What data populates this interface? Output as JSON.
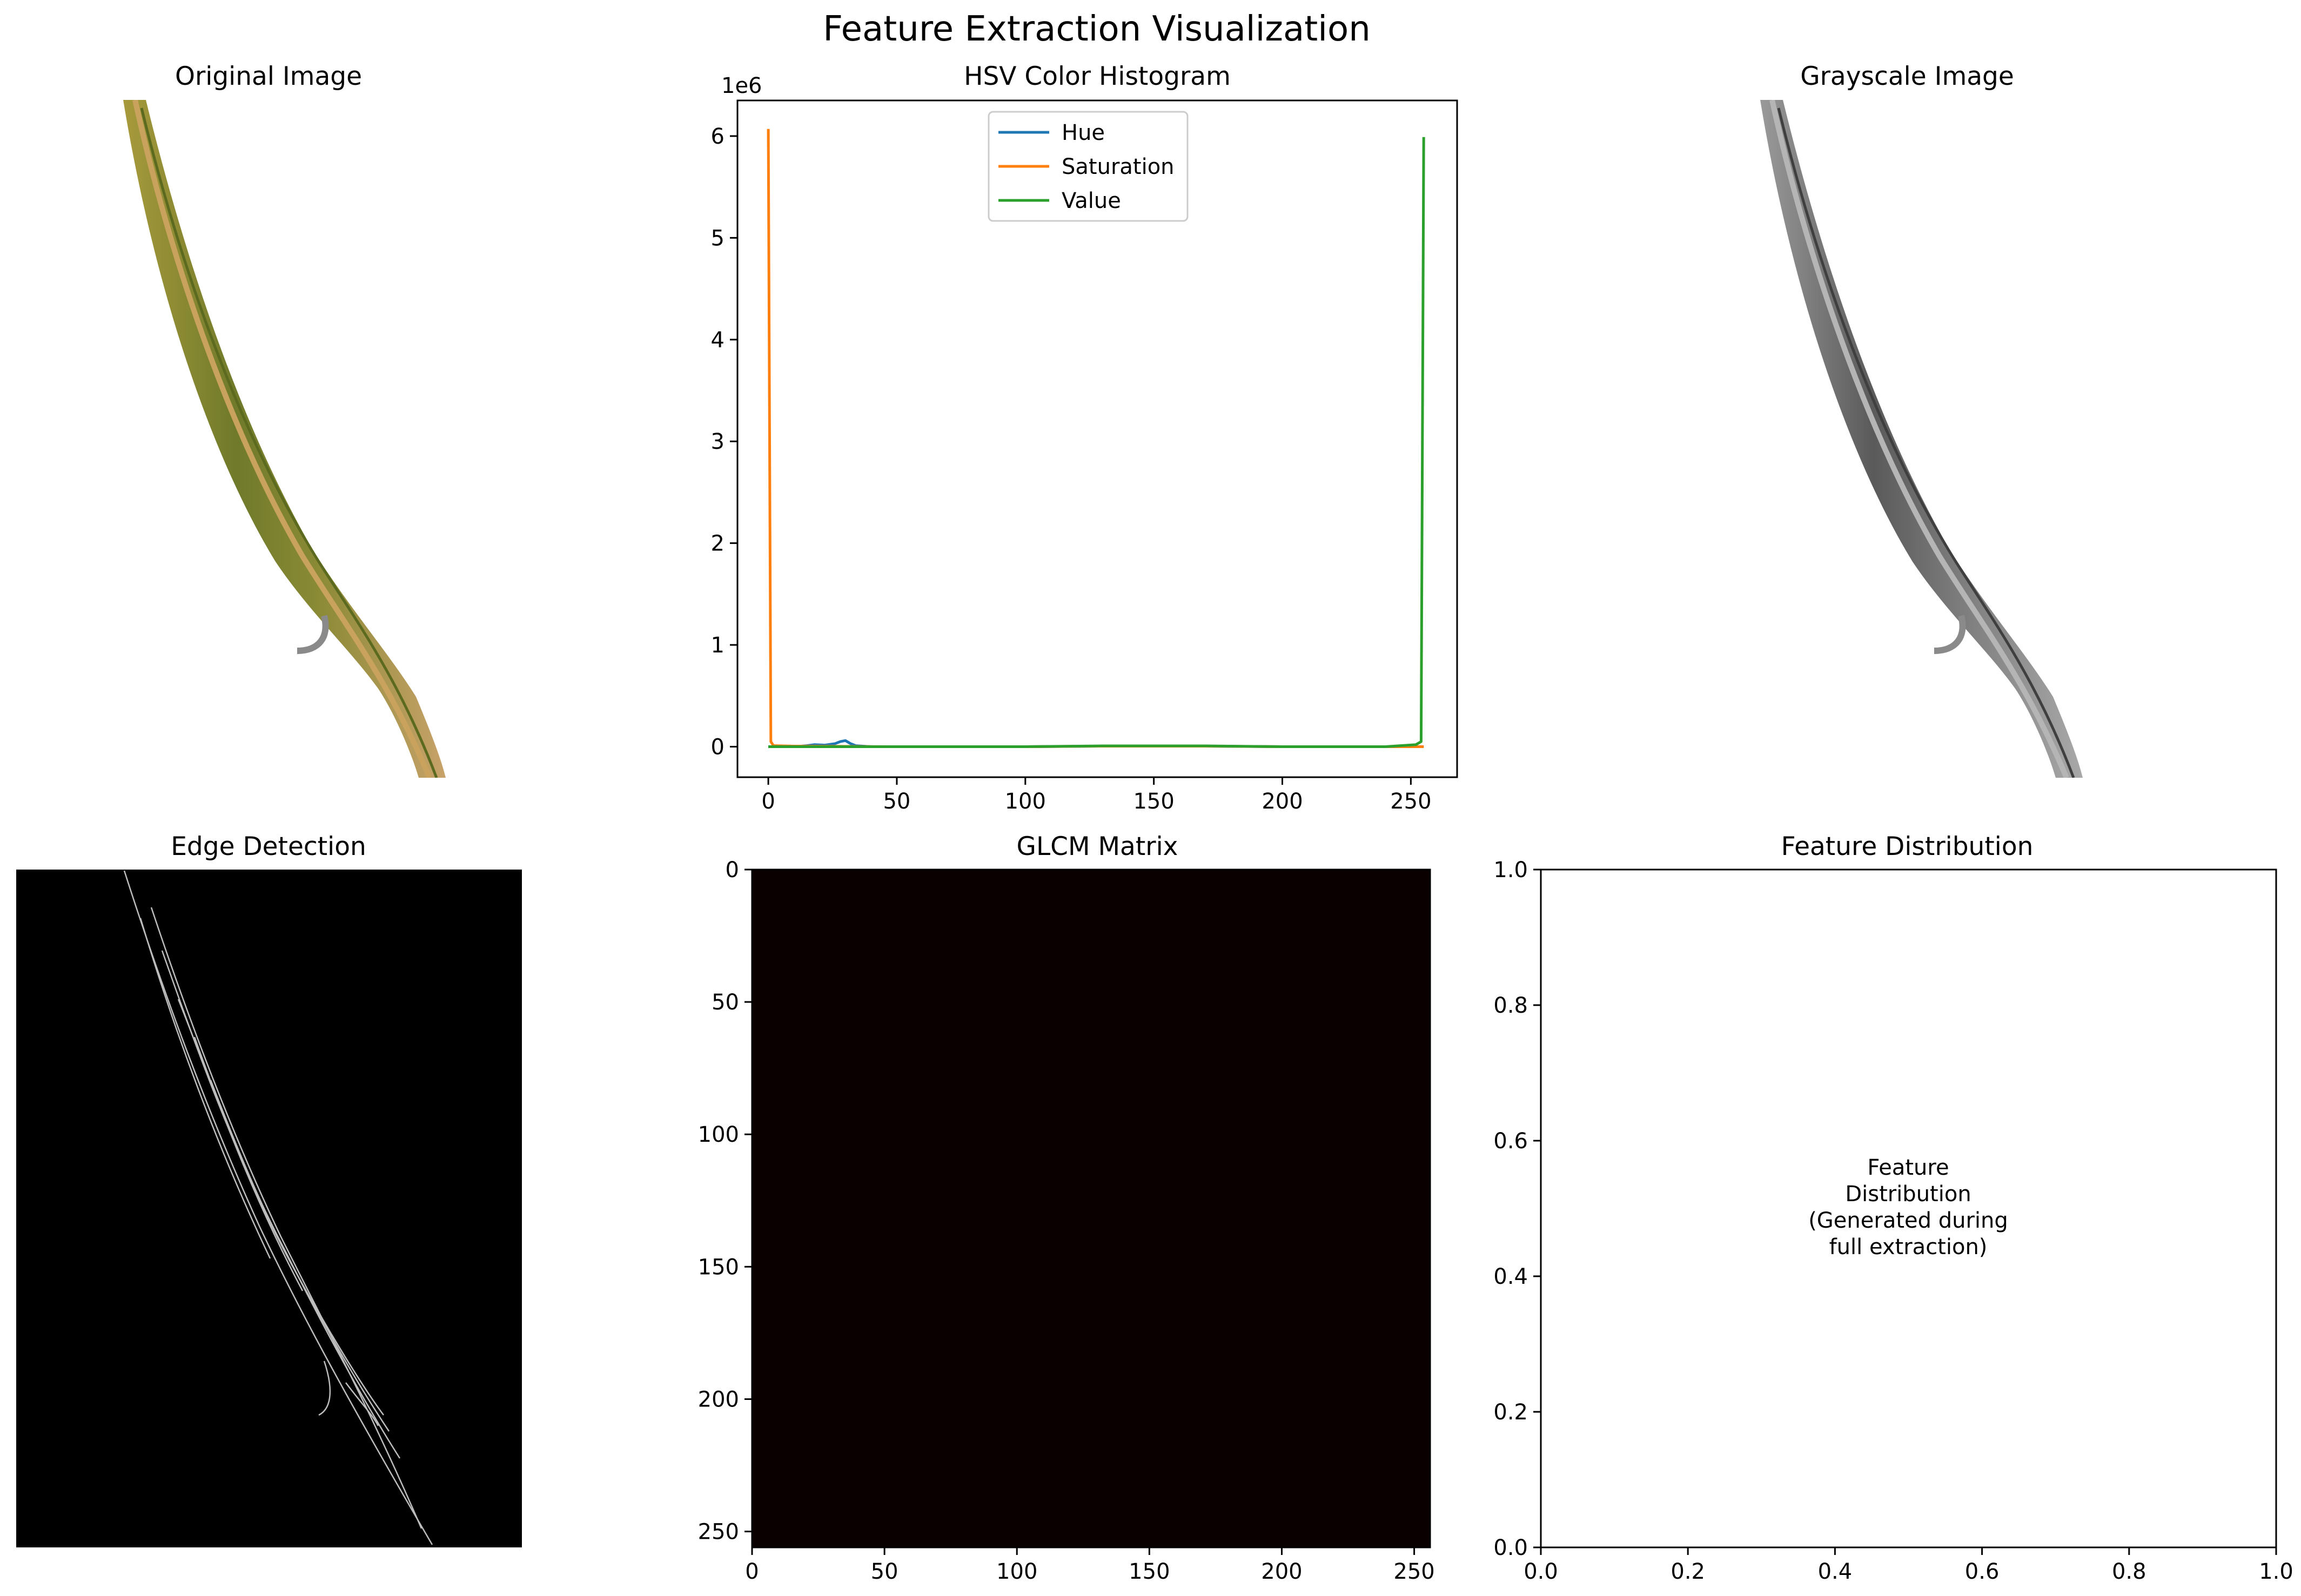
{
  "figure": {
    "title": "Feature Extraction Visualization"
  },
  "panels": {
    "original": {
      "title": "Original Image"
    },
    "grayscale": {
      "title": "Grayscale Image"
    },
    "edges": {
      "title": "Edge Detection"
    },
    "feature_distribution": {
      "title": "Feature Distribution",
      "placeholder_lines": [
        "Feature",
        "Distribution",
        "(Generated during",
        "full extraction)"
      ]
    }
  },
  "chart_data": [
    {
      "type": "line",
      "title": "HSV Color Histogram",
      "xlabel": "",
      "ylabel": "",
      "y_offset_label": "1e6",
      "xlim": [
        -12,
        268
      ],
      "ylim": [
        -0.3,
        6.35
      ],
      "xticks": [
        0,
        50,
        100,
        150,
        200,
        250
      ],
      "yticks": [
        0,
        1,
        2,
        3,
        4,
        5,
        6
      ],
      "legend": "upper-center",
      "series": [
        {
          "name": "Hue",
          "color": "#1f77b4",
          "x": [
            0,
            10,
            15,
            18,
            22,
            26,
            28,
            30,
            32,
            34,
            40,
            60,
            100,
            130,
            170,
            200,
            250,
            255
          ],
          "y": [
            0,
            0,
            0.01,
            0.02,
            0.015,
            0.03,
            0.05,
            0.06,
            0.03,
            0.01,
            0,
            0,
            0,
            0.005,
            0.005,
            0,
            0,
            0
          ]
        },
        {
          "name": "Saturation",
          "color": "#ff7f0e",
          "x": [
            0,
            1,
            2,
            10,
            50,
            100,
            130,
            170,
            200,
            250,
            255
          ],
          "y": [
            6.07,
            0.05,
            0.01,
            0.005,
            0,
            0,
            0.005,
            0.005,
            0,
            0,
            0
          ]
        },
        {
          "name": "Value",
          "color": "#2ca02c",
          "x": [
            0,
            50,
            100,
            130,
            170,
            200,
            240,
            252,
            254,
            255
          ],
          "y": [
            0,
            0,
            0,
            0.008,
            0.008,
            0,
            0,
            0.02,
            0.05,
            5.99
          ]
        }
      ]
    },
    {
      "type": "heatmap",
      "title": "GLCM Matrix",
      "xlim": [
        0,
        256
      ],
      "ylim": [
        256,
        0
      ],
      "xticks": [
        0,
        50,
        100,
        150,
        200,
        250
      ],
      "yticks": [
        0,
        50,
        100,
        150,
        200,
        250
      ],
      "fill_color": "#0b0000"
    },
    {
      "type": "scatter",
      "title": "Feature Distribution",
      "xlim": [
        0,
        1
      ],
      "ylim": [
        0,
        1
      ],
      "xticks": [
        "0.0",
        "0.2",
        "0.4",
        "0.6",
        "0.8",
        "1.0"
      ],
      "yticks": [
        "0.0",
        "0.2",
        "0.4",
        "0.6",
        "0.8",
        "1.0"
      ],
      "series": []
    }
  ]
}
